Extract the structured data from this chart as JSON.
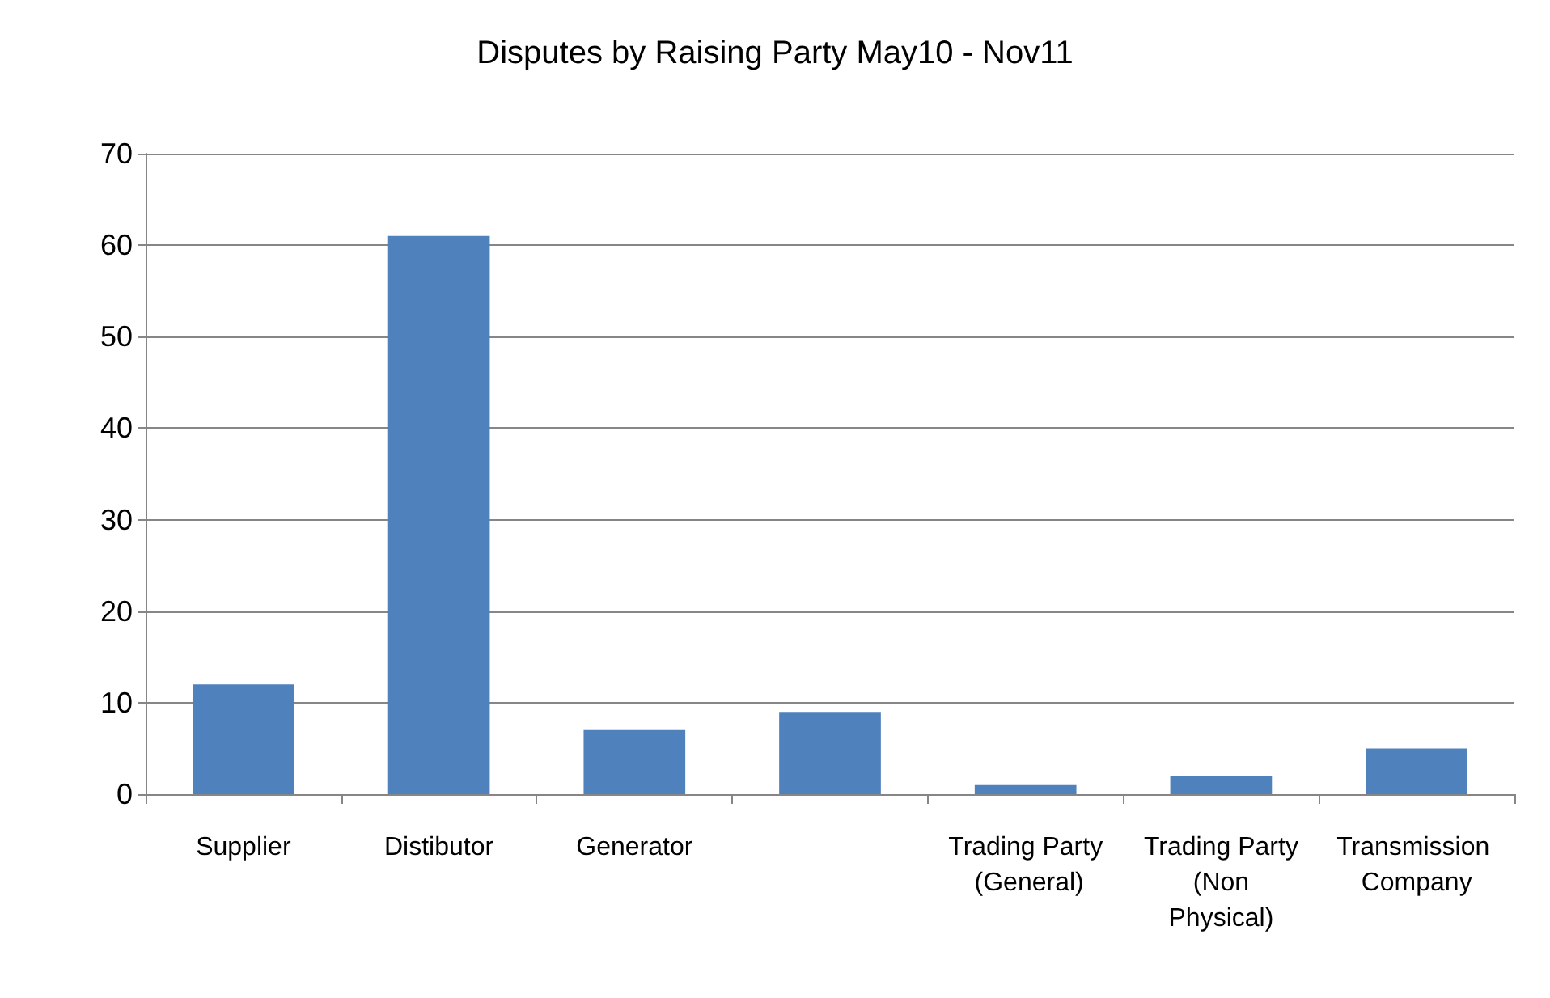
{
  "chart_data": {
    "type": "bar",
    "title": "Disputes by Raising Party May10 - Nov11",
    "categories": [
      "Supplier",
      "Distibutor",
      "Generator",
      null,
      "Trading Party (General)",
      "Trading Party (Non Physical)",
      "Transmission Company"
    ],
    "values": [
      12,
      61,
      7,
      9,
      1,
      2,
      5
    ],
    "color": "#4f81bd",
    "ylim": [
      0,
      70
    ],
    "yticks": [
      0,
      10,
      20,
      30,
      40,
      50,
      60,
      70
    ],
    "grid": "y"
  }
}
